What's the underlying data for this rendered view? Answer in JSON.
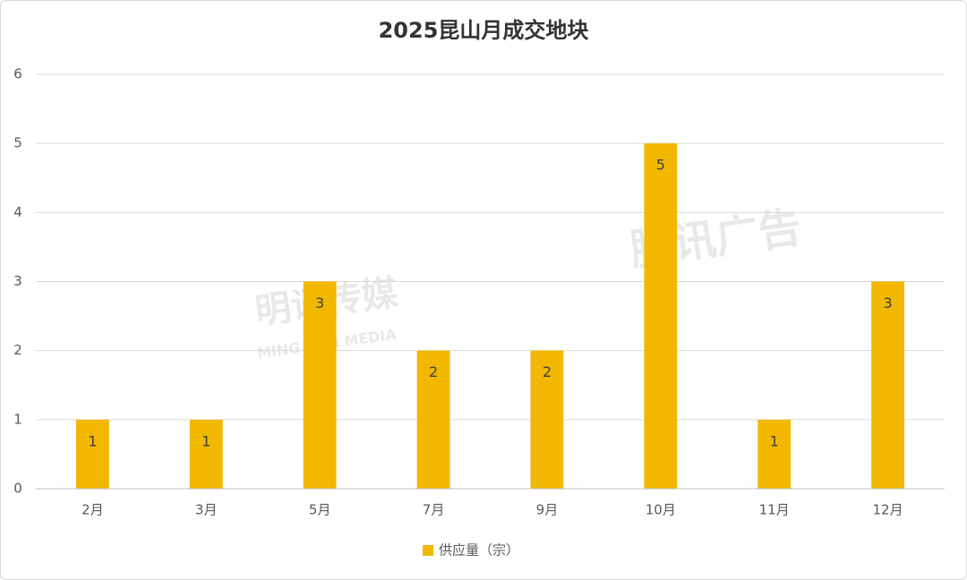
{
  "chart_data": {
    "type": "bar",
    "title": "2025昆山月成交地块",
    "categories": [
      "2月",
      "3月",
      "5月",
      "7月",
      "9月",
      "10月",
      "11月",
      "12月"
    ],
    "series": [
      {
        "name": "供应量（宗）",
        "color": "#f2b800",
        "values": [
          1,
          1,
          3,
          2,
          2,
          5,
          1,
          3
        ]
      }
    ],
    "ylim": [
      0,
      6
    ],
    "yticks": [
      0,
      1,
      2,
      3,
      4,
      5,
      6
    ],
    "grid": true,
    "legend": "bottom"
  },
  "watermarks": [
    "明讯传媒",
    "MING XUN MEDIA",
    "腾讯广告"
  ]
}
